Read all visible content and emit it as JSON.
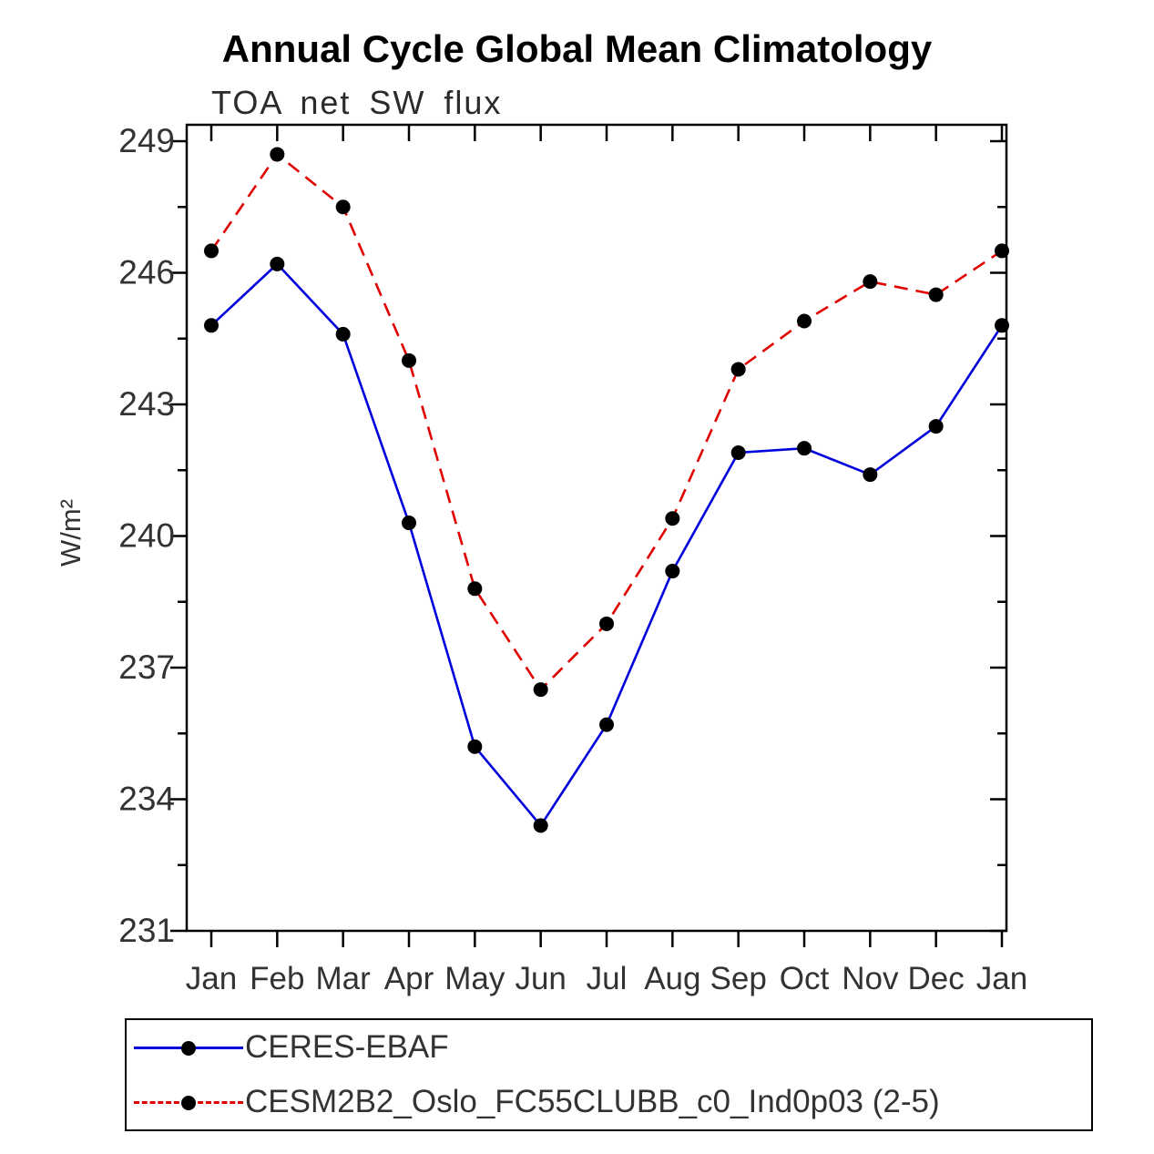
{
  "title": "Annual Cycle Global Mean Climatology",
  "subtitle": "TOA net SW flux",
  "chart_data": {
    "type": "line",
    "categories": [
      "Jan",
      "Feb",
      "Mar",
      "Apr",
      "May",
      "Jun",
      "Jul",
      "Aug",
      "Sep",
      "Oct",
      "Nov",
      "Dec",
      "Jan"
    ],
    "xlabel": "",
    "ylabel": "W/m²",
    "ylim": [
      231,
      249
    ],
    "yticks": [
      231,
      234,
      237,
      240,
      243,
      246,
      249
    ],
    "minor_tick_step": 1.5,
    "grid": false,
    "legend_position": "bottom",
    "marker_color": "#000000",
    "frame_color": "#000000",
    "series": [
      {
        "name": "CERES-EBAF",
        "color": "#0000dd",
        "style": "solid",
        "values": [
          244.8,
          246.2,
          244.6,
          240.3,
          235.2,
          233.4,
          235.7,
          239.2,
          241.9,
          242.0,
          241.4,
          242.5,
          244.8
        ]
      },
      {
        "name": "CESM2B2_Oslo_FC55CLUBB_c0_Ind0p03 (2-5)",
        "color": "#e00000",
        "style": "dashed",
        "values": [
          246.5,
          248.7,
          247.5,
          244.0,
          238.8,
          236.5,
          238.0,
          240.4,
          243.8,
          244.9,
          245.8,
          245.5,
          246.5
        ]
      }
    ]
  }
}
